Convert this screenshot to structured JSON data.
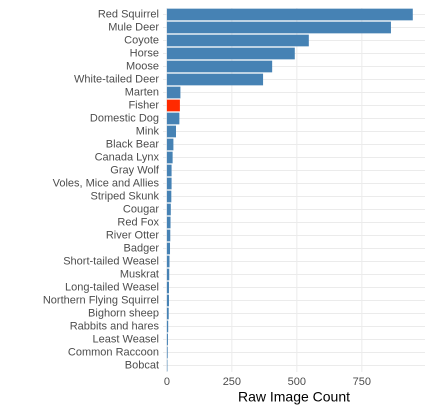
{
  "chart_data": {
    "type": "barh",
    "categories": [
      "Red Squirrel",
      "Mule Deer",
      "Coyote",
      "Horse",
      "Moose",
      "White-tailed Deer",
      "Marten",
      "Fisher",
      "Domestic Dog",
      "Mink",
      "Black Bear",
      "Canada Lynx",
      "Gray Wolf",
      "Voles, Mice and Allies",
      "Striped Skunk",
      "Cougar",
      "Red Fox",
      "River Otter",
      "Badger",
      "Short-tailed Weasel",
      "Muskrat",
      "Long-tailed Weasel",
      "Northern Flying Squirrel",
      "Bighorn sheep",
      "Rabbits and hares",
      "Least Weasel",
      "Common Raccoon",
      "Bobcat"
    ],
    "values": [
      946,
      862,
      546,
      492,
      405,
      370,
      52,
      50,
      48,
      35,
      25,
      22,
      18,
      18,
      17,
      15,
      14,
      13,
      12,
      10,
      9,
      8,
      8,
      7,
      5,
      4,
      3,
      2
    ],
    "colors": [
      "#4682b4",
      "#4682b4",
      "#4682b4",
      "#4682b4",
      "#4682b4",
      "#4682b4",
      "#4682b4",
      "#ff2a00",
      "#4682b4",
      "#4682b4",
      "#4682b4",
      "#4682b4",
      "#4682b4",
      "#4682b4",
      "#4682b4",
      "#4682b4",
      "#4682b4",
      "#4682b4",
      "#4682b4",
      "#4682b4",
      "#4682b4",
      "#4682b4",
      "#4682b4",
      "#4682b4",
      "#4682b4",
      "#4682b4",
      "#4682b4",
      "#4682b4"
    ],
    "xlabel": "Raw Image Count",
    "xlim": [
      -15,
      993
    ],
    "xticks": [
      0,
      250,
      500,
      750
    ],
    "grid": true
  }
}
